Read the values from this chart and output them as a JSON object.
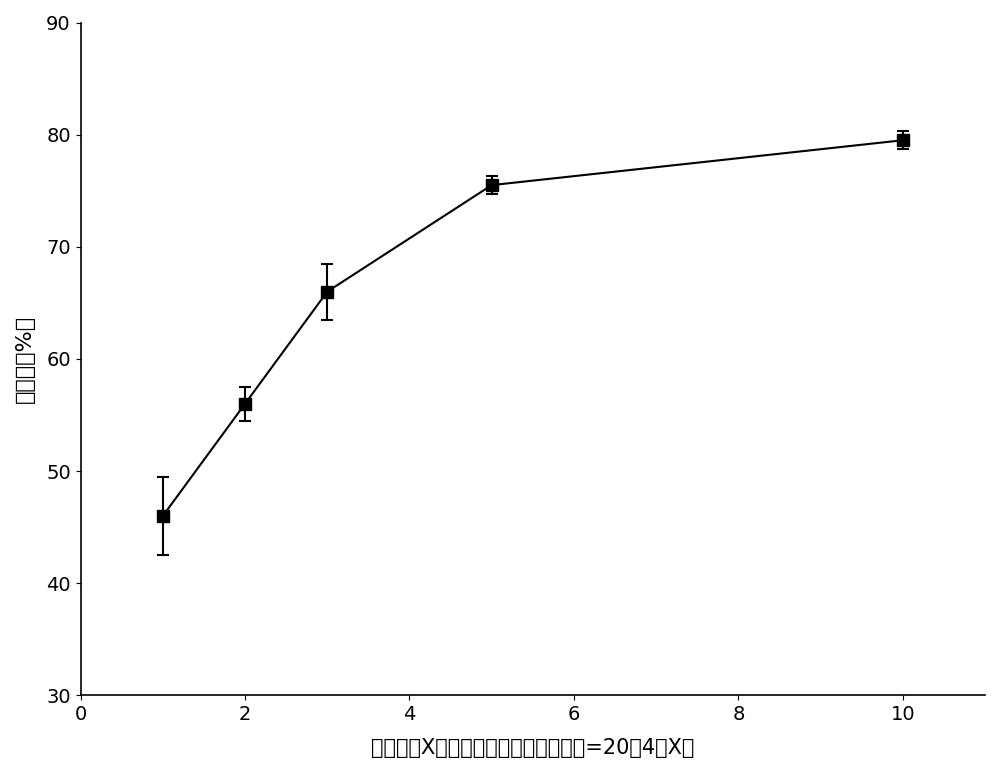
{
  "x": [
    1,
    2,
    3,
    5,
    10
  ],
  "y": [
    46.0,
    56.0,
    66.0,
    75.5,
    79.5
  ],
  "yerr": [
    3.5,
    1.5,
    2.5,
    0.8,
    0.8
  ],
  "xlim": [
    0,
    11
  ],
  "ylim": [
    30,
    90
  ],
  "xticks": [
    0,
    2,
    4,
    6,
    8,
    10
  ],
  "yticks": [
    30,
    40,
    50,
    60,
    70,
    80,
    90
  ],
  "ylabel": "去除率（%）",
  "xlabel": "单宁比例X（粘土：聚合氯化铝：单宁=20：4：X）",
  "line_color": "#000000",
  "marker": "s",
  "marker_color": "#000000",
  "marker_size": 8,
  "line_width": 1.5,
  "background_color": "#ffffff",
  "ylabel_fontsize": 16,
  "xlabel_fontsize": 15,
  "tick_fontsize": 14
}
